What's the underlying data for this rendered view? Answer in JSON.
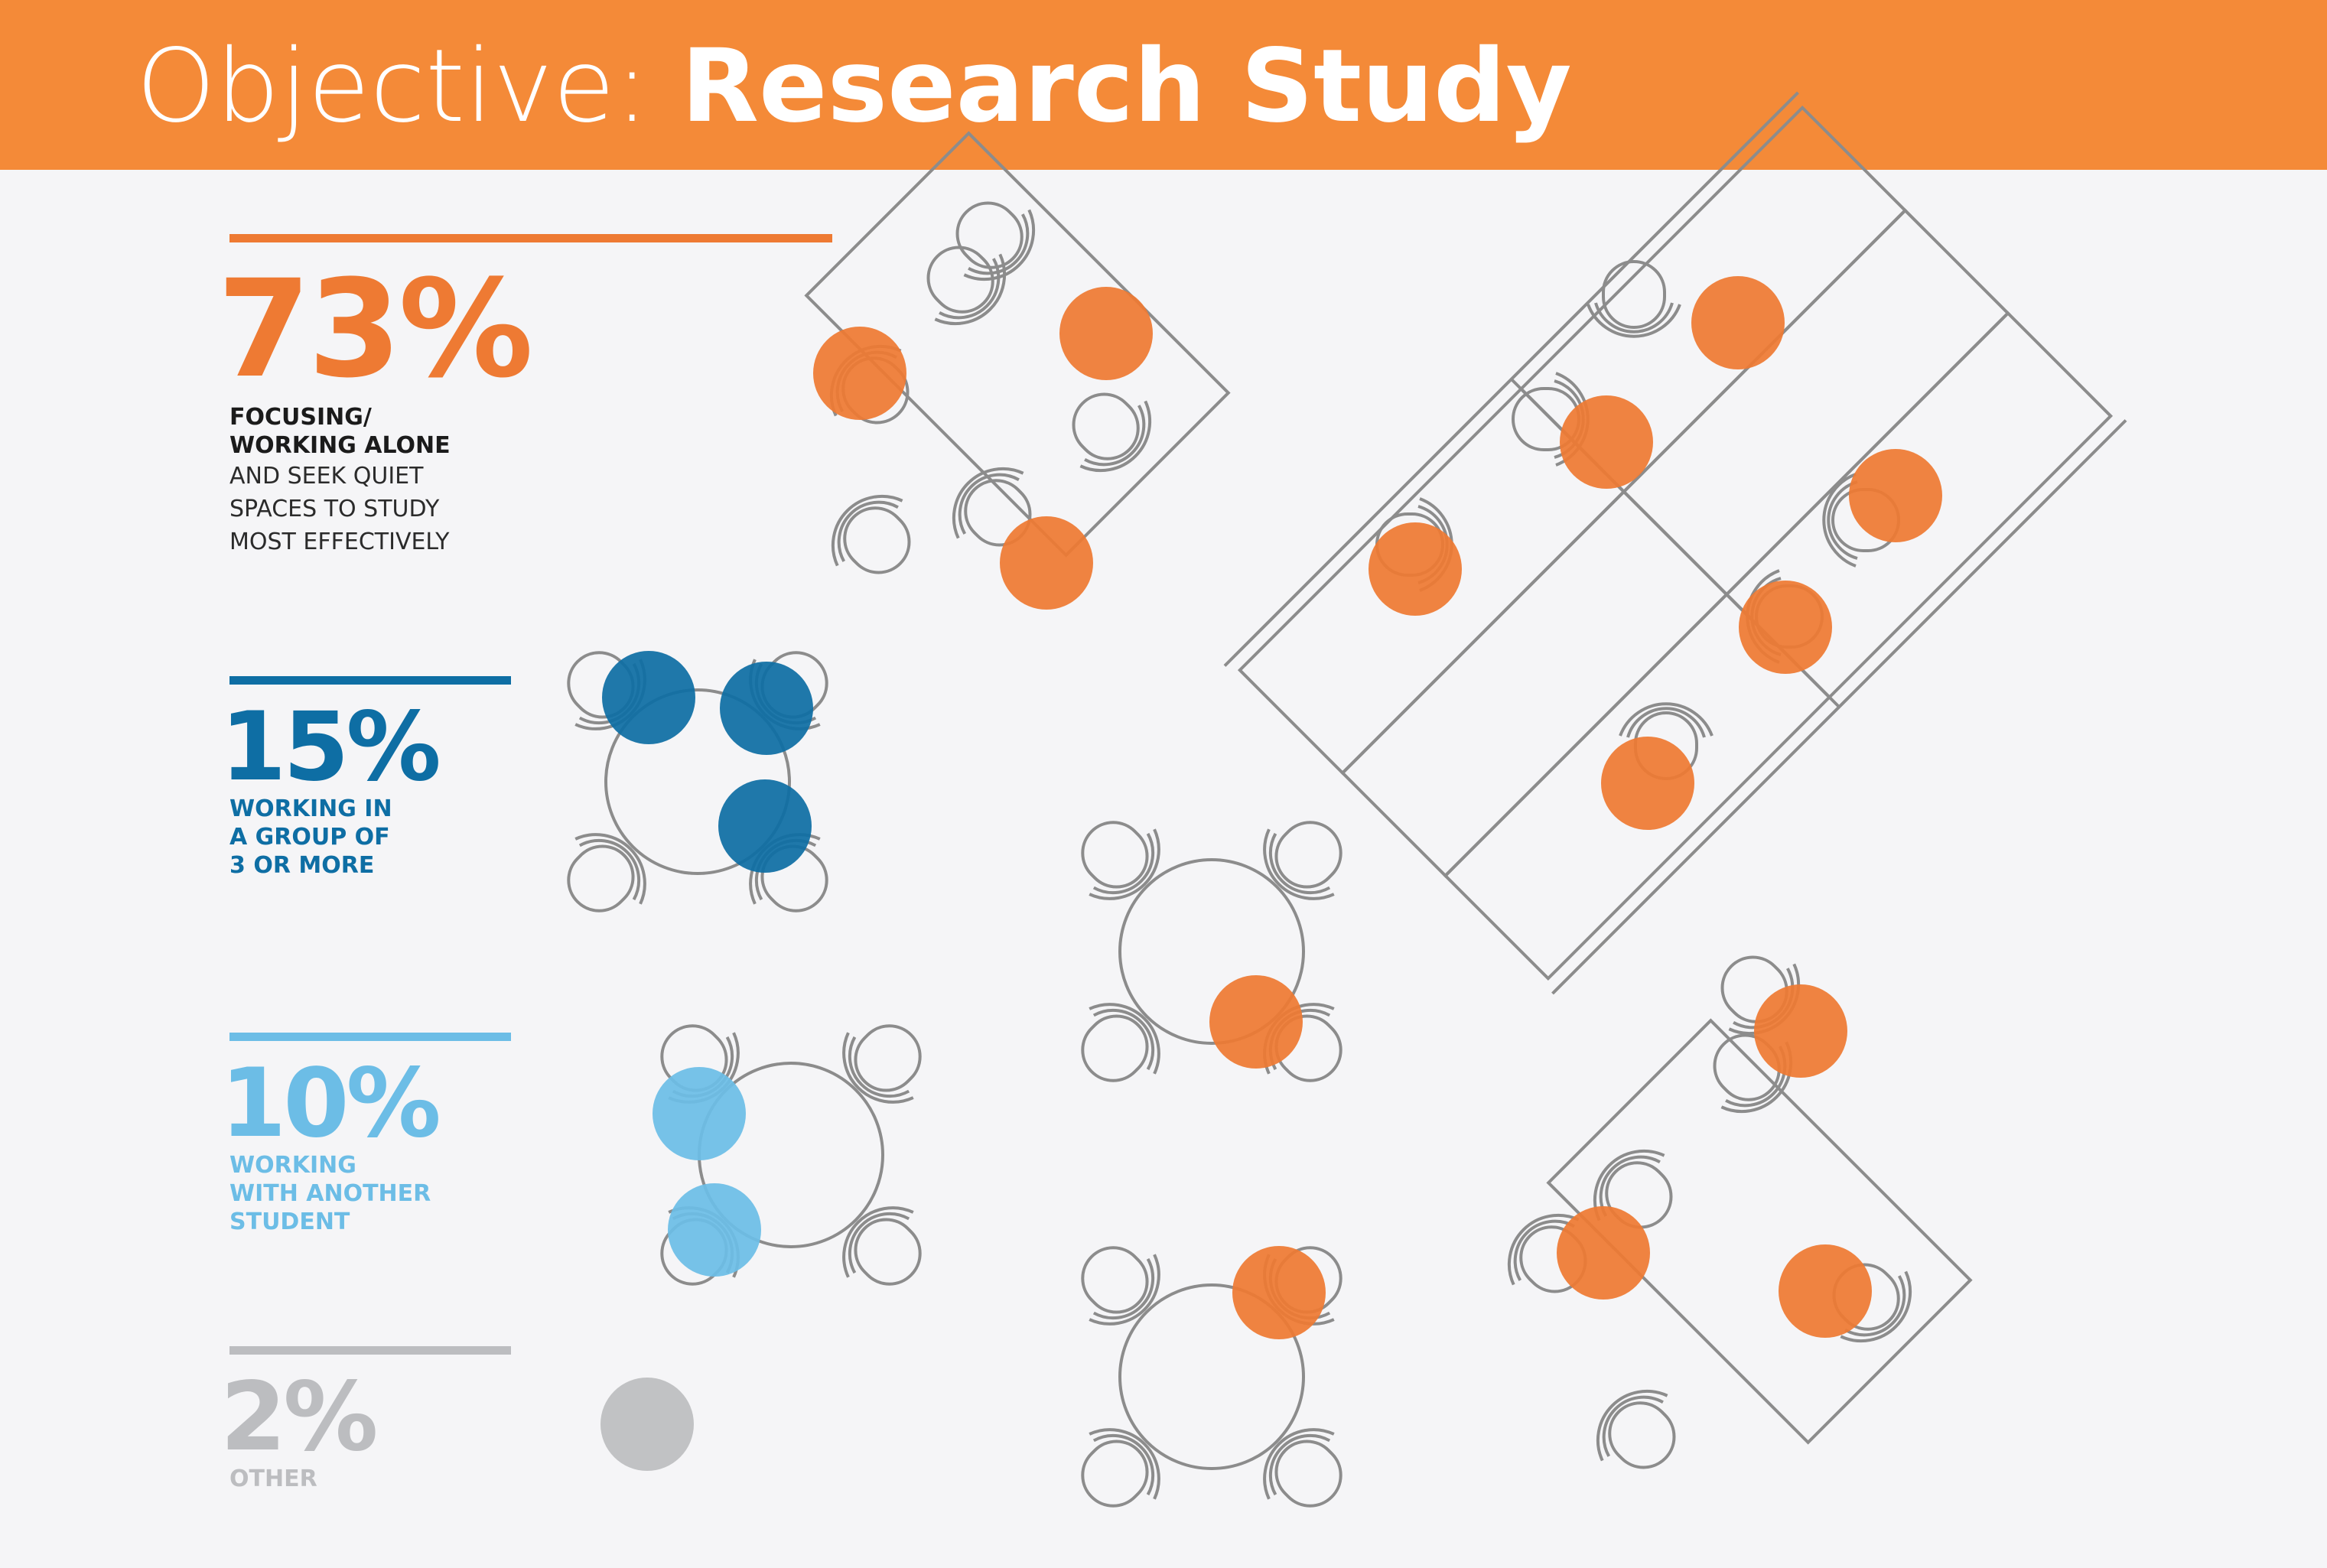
{
  "header": {
    "title_prefix": "Objective:",
    "title_main": "Research Study"
  },
  "colors": {
    "banner": "#f48a38",
    "alone": "#ee7a33",
    "group": "#0e6ea4",
    "pair": "#6cbde6",
    "other": "#bcbdc0",
    "furniture_line": "#8c8c8c"
  },
  "stats": {
    "alone": {
      "percent": "73%",
      "value": 73,
      "label_bold": "FOCUSING/\nWORKING ALONE",
      "label_light": "AND SEEK QUIET\nSPACES TO STUDY\nMOST EFFECTIVELY"
    },
    "group": {
      "percent": "15%",
      "value": 15,
      "label_bold": "WORKING IN\nA GROUP OF\n3 OR MORE"
    },
    "pair": {
      "percent": "10%",
      "value": 10,
      "label_bold": "WORKING\nWITH ANOTHER\nSTUDENT"
    },
    "other": {
      "percent": "2%",
      "value": 2,
      "label_bold": "OTHER"
    }
  }
}
